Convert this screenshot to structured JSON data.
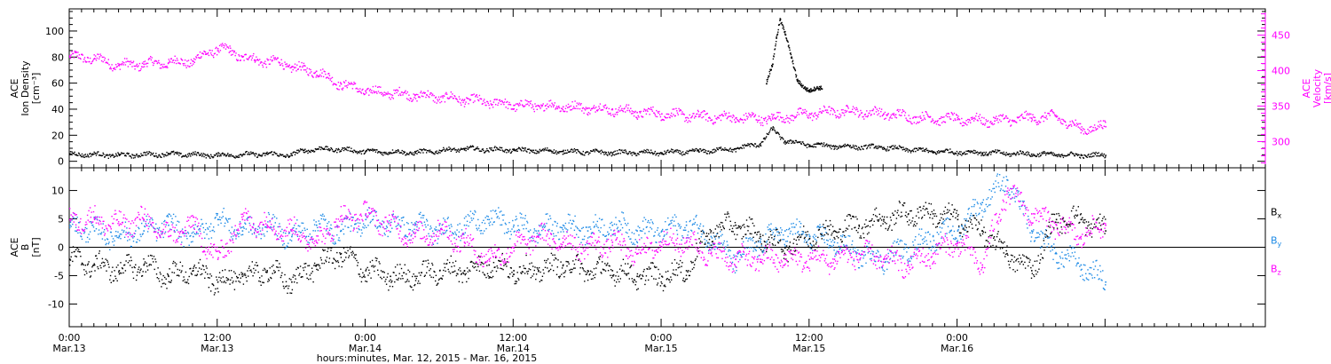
{
  "chart_data": [
    {
      "type": "scatter",
      "panel": "top",
      "left_axis": {
        "label_lines": [
          "ACE",
          "Ion Density",
          "[cm⁻³]"
        ],
        "ylim": [
          -5,
          117
        ],
        "ticks": [
          "0",
          "20",
          "40",
          "60",
          "80",
          "100"
        ],
        "tick_values": [
          0,
          20,
          40,
          60,
          80,
          100
        ],
        "color": "#000000"
      },
      "right_axis": {
        "label_lines": [
          "ACE",
          "Velocity",
          "[km/s]"
        ],
        "ylim": [
          263,
          487
        ],
        "ticks": [
          "300",
          "350",
          "400",
          "450"
        ],
        "tick_values": [
          300,
          350,
          400,
          450
        ],
        "color": "#ff00ff"
      },
      "series": [
        {
          "color": "#ff00ff",
          "axis": "right",
          "x": [
            0,
            2,
            4,
            6,
            8,
            10,
            11,
            12,
            13,
            14,
            15,
            17,
            18,
            19,
            20,
            21,
            22,
            24,
            28,
            32,
            36,
            40,
            42,
            44,
            46,
            48,
            51,
            54,
            57,
            60,
            63,
            66,
            69,
            72,
            75,
            78,
            80,
            82,
            84
          ],
          "y": [
            420,
            418,
            408,
            410,
            412,
            414,
            424,
            432,
            428,
            420,
            416,
            412,
            406,
            402,
            400,
            390,
            382,
            372,
            366,
            360,
            352,
            350,
            348,
            346,
            342,
            340,
            336,
            334,
            333,
            340,
            344,
            340,
            334,
            332,
            330,
            334,
            336,
            318,
            322
          ]
        },
        {
          "color": "#000000",
          "axis": "left",
          "x": [
            0,
            4,
            8,
            12,
            16,
            18,
            19,
            21,
            24,
            28,
            32,
            36,
            40,
            44,
            48,
            51,
            54,
            56,
            57,
            58,
            60,
            62,
            66,
            70,
            74,
            78,
            82,
            84
          ],
          "y": [
            6,
            5,
            6,
            5,
            6,
            5,
            9,
            10,
            8,
            7,
            10,
            9,
            8,
            7,
            7,
            8,
            10,
            14,
            25,
            16,
            13,
            12,
            11,
            8,
            7,
            6,
            5,
            5
          ]
        },
        {
          "color": "#000000",
          "axis": "left",
          "x": [
            56.5,
            57,
            57.3,
            57.6,
            58,
            58.5,
            59,
            60,
            61
          ],
          "y": [
            60,
            75,
            95,
            110,
            100,
            80,
            62,
            55,
            56
          ]
        }
      ]
    },
    {
      "type": "scatter",
      "panel": "bottom",
      "left_axis": {
        "label_lines": [
          "ACE",
          "B",
          "[nT]"
        ],
        "ylim": [
          -14,
          14
        ],
        "ticks": [
          "-10",
          "-5",
          "0",
          "5",
          "10"
        ],
        "tick_values": [
          -10,
          -5,
          0,
          5,
          10
        ],
        "color": "#000000"
      },
      "zero_line": true,
      "series": [
        {
          "name": "B",
          "subscript": "x",
          "color": "#000000",
          "x": [
            0,
            2,
            4,
            6,
            8,
            10,
            12,
            14,
            16,
            18,
            20,
            22,
            24,
            26,
            28,
            30,
            32,
            34,
            36,
            38,
            40,
            42,
            44,
            46,
            48,
            50,
            52,
            54,
            56,
            58,
            60,
            62,
            64,
            66,
            68,
            70,
            72,
            74,
            76,
            78,
            80,
            82,
            84
          ],
          "y": [
            -2,
            -3,
            -4,
            -3,
            -5,
            -4,
            -6,
            -5,
            -4,
            -6,
            -3,
            -1,
            -4,
            -5,
            -5,
            -4,
            -4,
            -3,
            -4,
            -4,
            -3,
            -4,
            -4,
            -5,
            -5,
            -4,
            3,
            4,
            2,
            0,
            2,
            3,
            4,
            5,
            6,
            6,
            5,
            3,
            -1,
            -4,
            5,
            5,
            3
          ]
        },
        {
          "name": "B",
          "subscript": "y",
          "color": "#1e8be6",
          "x": [
            0,
            2,
            4,
            6,
            8,
            10,
            12,
            14,
            16,
            18,
            20,
            22,
            24,
            26,
            28,
            30,
            32,
            34,
            36,
            38,
            40,
            42,
            44,
            46,
            48,
            50,
            52,
            54,
            56,
            58,
            60,
            62,
            64,
            66,
            68,
            70,
            72,
            74,
            76,
            78,
            80,
            82,
            84
          ],
          "y": [
            4,
            3,
            2,
            3,
            4,
            2,
            5,
            3,
            4,
            2,
            4,
            3,
            5,
            4,
            4,
            3,
            4,
            5,
            4,
            3,
            4,
            3,
            4,
            3,
            3,
            4,
            2,
            -2,
            1,
            3,
            2,
            1,
            -1,
            -2,
            0,
            2,
            3,
            8,
            12,
            3,
            -1,
            -3,
            -6
          ]
        },
        {
          "name": "B",
          "subscript": "z",
          "color": "#ff00ff",
          "x": [
            0,
            2,
            4,
            6,
            8,
            10,
            12,
            14,
            16,
            18,
            20,
            22,
            24,
            26,
            28,
            30,
            32,
            34,
            36,
            38,
            40,
            42,
            44,
            46,
            48,
            50,
            52,
            54,
            56,
            58,
            60,
            62,
            64,
            66,
            68,
            70,
            72,
            74,
            76,
            78,
            80,
            82,
            84
          ],
          "y": [
            5,
            5,
            4,
            5,
            2,
            4,
            -2,
            5,
            4,
            3,
            1,
            5,
            6,
            4,
            2,
            3,
            1,
            -2,
            0,
            2,
            1,
            0,
            1,
            -1,
            1,
            1,
            -1,
            -2,
            -2,
            -2,
            -2,
            -2,
            -1,
            -2,
            -3,
            -1,
            1,
            -3,
            10,
            6,
            4,
            2,
            4
          ]
        }
      ]
    }
  ],
  "x_axis": {
    "xlim_hours": [
      0,
      97
    ],
    "major_ticks_hours": [
      0,
      12,
      24,
      36,
      48,
      60,
      72,
      84
    ],
    "minor_tick_step_hours": 1,
    "tick_labels": [
      {
        "time": "0:00",
        "date": "Mar.13"
      },
      {
        "time": "12:00",
        "date": "Mar.13"
      },
      {
        "time": "0:00",
        "date": "Mar.14"
      },
      {
        "time": "12:00",
        "date": "Mar.14"
      },
      {
        "time": "0:00",
        "date": "Mar.15"
      },
      {
        "time": "12:00",
        "date": "Mar.15"
      },
      {
        "time": "0:00",
        "date": "Mar.16"
      }
    ],
    "title": "hours:minutes, Mar. 12, 2015 - Mar. 16, 2015"
  }
}
